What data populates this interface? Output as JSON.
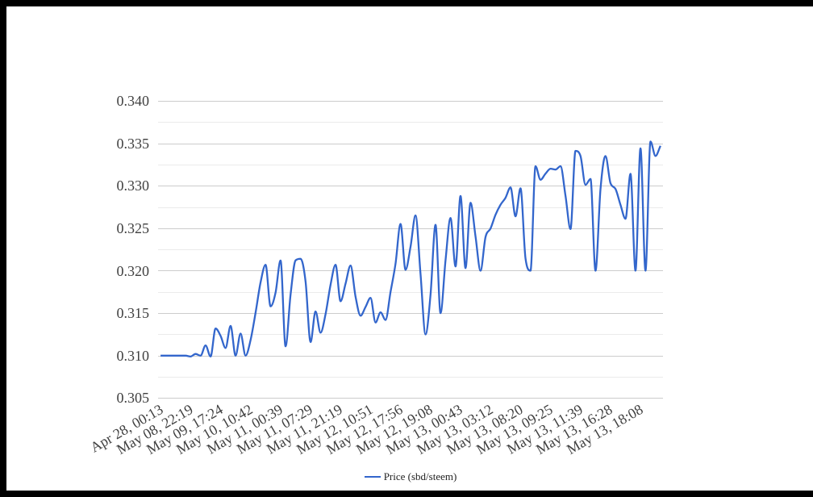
{
  "window": {
    "background": "#ffffff",
    "frame_color": "#000000"
  },
  "chart_data": {
    "type": "line",
    "title": "",
    "x_tick_labels": [
      "Apr 28, 00:13",
      "May 08, 22:19",
      "May 09, 17:24",
      "May 10, 10:42",
      "May 11, 00:39",
      "May 11, 07:29",
      "May 11, 21:19",
      "May 12, 10:51",
      "May 12, 17:56",
      "May 12, 19:08",
      "May 13, 00:43",
      "May 13, 03:12",
      "May 13, 08:20",
      "May 13, 09:25",
      "May 13, 11:39",
      "May 13, 16:28",
      "May 13, 18:08"
    ],
    "tick_every": 6,
    "y_tick_labels": [
      "0.305",
      "0.310",
      "0.315",
      "0.320",
      "0.325",
      "0.330",
      "0.335",
      "0.340"
    ],
    "y_ticks": [
      0.305,
      0.31,
      0.315,
      0.32,
      0.325,
      0.33,
      0.335,
      0.34
    ],
    "ylim": [
      0.305,
      0.34
    ],
    "grid": {
      "major_color": "#cccccc",
      "minor_color": "#ebebeb",
      "minors_between_majors": 1
    },
    "legend_position": "bottom-center",
    "x_label_angle_deg": -30,
    "series": [
      {
        "name": "Price (sbd/steem)",
        "color": "#3366cc",
        "values": [
          0.31,
          0.31,
          0.31,
          0.31,
          0.31,
          0.31,
          0.3099,
          0.3102,
          0.31,
          0.3112,
          0.3099,
          0.3132,
          0.31233,
          0.3109,
          0.3135,
          0.31,
          0.3126,
          0.31,
          0.31183,
          0.31505,
          0.31862,
          0.3207,
          0.3158,
          0.31742,
          0.3212,
          0.3111,
          0.31717,
          0.32121,
          0.3214,
          0.31873,
          0.3116,
          0.3152,
          0.3127,
          0.31488,
          0.31834,
          0.3207,
          0.3164,
          0.31847,
          0.3206,
          0.31694,
          0.3147,
          0.31573,
          0.3168,
          0.3139,
          0.3151,
          0.3142,
          0.3175,
          0.32083,
          0.3255,
          0.3201,
          0.32282,
          0.3265,
          0.3196,
          0.3125,
          0.31718,
          0.3254,
          0.315,
          0.32122,
          0.3262,
          0.3205,
          0.3288,
          0.3203,
          0.328,
          0.32403,
          0.32,
          0.32396,
          0.32496,
          0.32658,
          0.32776,
          0.32858,
          0.3298,
          0.3264,
          0.3297,
          0.32144,
          0.32,
          0.3323,
          0.3307,
          0.33142,
          0.332,
          0.3319,
          0.3323,
          0.32881,
          0.3249,
          0.3341,
          0.3335,
          0.3301,
          0.3308,
          0.32,
          0.32959,
          0.3335,
          0.3303,
          0.32962,
          0.32775,
          0.3261,
          0.3314,
          0.32,
          0.3344,
          0.32,
          0.3352,
          0.3335,
          0.3347
        ]
      }
    ]
  },
  "legend": {
    "items": [
      {
        "label": "Price (sbd/steem)",
        "color": "#3366cc"
      }
    ]
  },
  "axis_text_color": "#404040",
  "legend_text_color": "#222222"
}
